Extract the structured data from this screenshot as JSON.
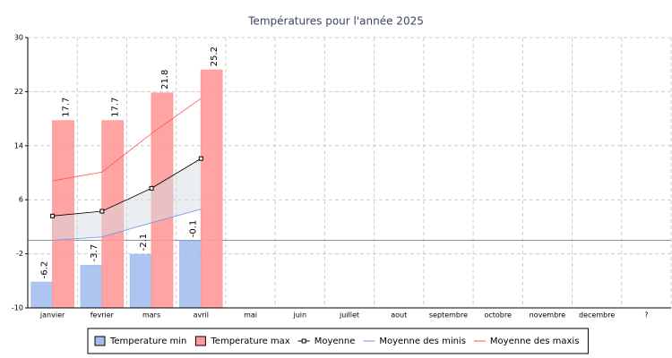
{
  "chart_data": {
    "type": "bar",
    "title": "Températures pour l'année 2025",
    "categories": [
      "janvier",
      "fevrier",
      "mars",
      "avril",
      "mai",
      "juin",
      "juillet",
      "aout",
      "septembre",
      "octobre",
      "novembre",
      "decembre",
      "?"
    ],
    "series": [
      {
        "name": "Temperature min",
        "type": "bar",
        "color": "#a4bfee",
        "values": [
          -6.2,
          -3.7,
          -2.1,
          -0.1,
          null,
          null,
          null,
          null,
          null,
          null,
          null,
          null,
          null
        ]
      },
      {
        "name": "Temperature max",
        "type": "bar",
        "color": "#ff9999",
        "values": [
          17.7,
          17.7,
          21.8,
          25.2,
          null,
          null,
          null,
          null,
          null,
          null,
          null,
          null,
          null
        ]
      },
      {
        "name": "Moyenne",
        "type": "line",
        "marker": "square",
        "color": "#000000",
        "values": [
          3.6,
          4.3,
          7.7,
          12.1,
          null,
          null,
          null,
          null,
          null,
          null,
          null,
          null,
          null
        ]
      },
      {
        "name": "Moyenne des minis",
        "type": "line",
        "color": "#6a8fe8",
        "values": [
          0.0,
          0.5,
          2.6,
          4.6,
          null,
          null,
          null,
          null,
          null,
          null,
          null,
          null,
          null
        ]
      },
      {
        "name": "Moyenne des maxis",
        "type": "line",
        "color": "#ff5555",
        "values": [
          8.8,
          10.1,
          15.8,
          21.0,
          null,
          null,
          null,
          null,
          null,
          null,
          null,
          null,
          null
        ]
      }
    ],
    "ylim": [
      -10,
      30
    ],
    "yticks": [
      -10,
      -2,
      6,
      14,
      22,
      30
    ],
    "grid": true,
    "legend": "bottom"
  }
}
